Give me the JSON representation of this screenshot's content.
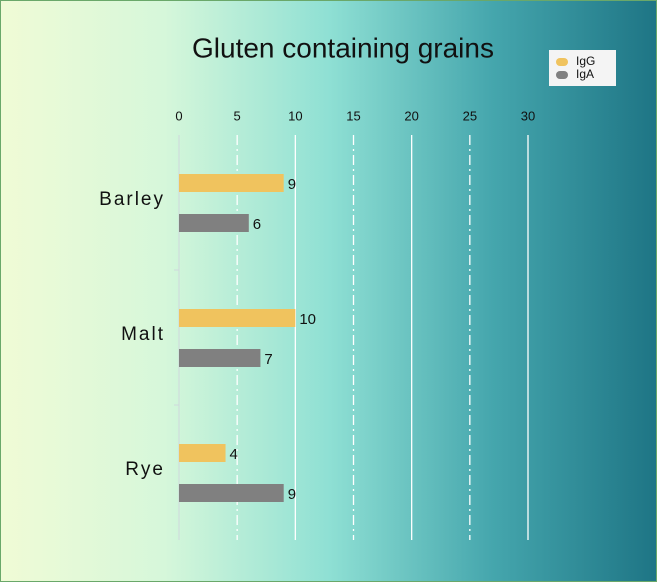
{
  "chart_data": {
    "type": "bar",
    "orientation": "horizontal",
    "title": "Gluten containing grains",
    "categories": [
      "Barley",
      "Malt",
      "Rye"
    ],
    "series": [
      {
        "name": "IgG",
        "color": "#f0c35e",
        "values": [
          9,
          10,
          4
        ]
      },
      {
        "name": "IgA",
        "color": "#808080",
        "values": [
          6,
          7,
          9
        ]
      }
    ],
    "xlim": [
      0,
      30
    ],
    "xticks": [
      0,
      5,
      10,
      15,
      20,
      25,
      30
    ],
    "grid": true,
    "legend": "top-right"
  }
}
